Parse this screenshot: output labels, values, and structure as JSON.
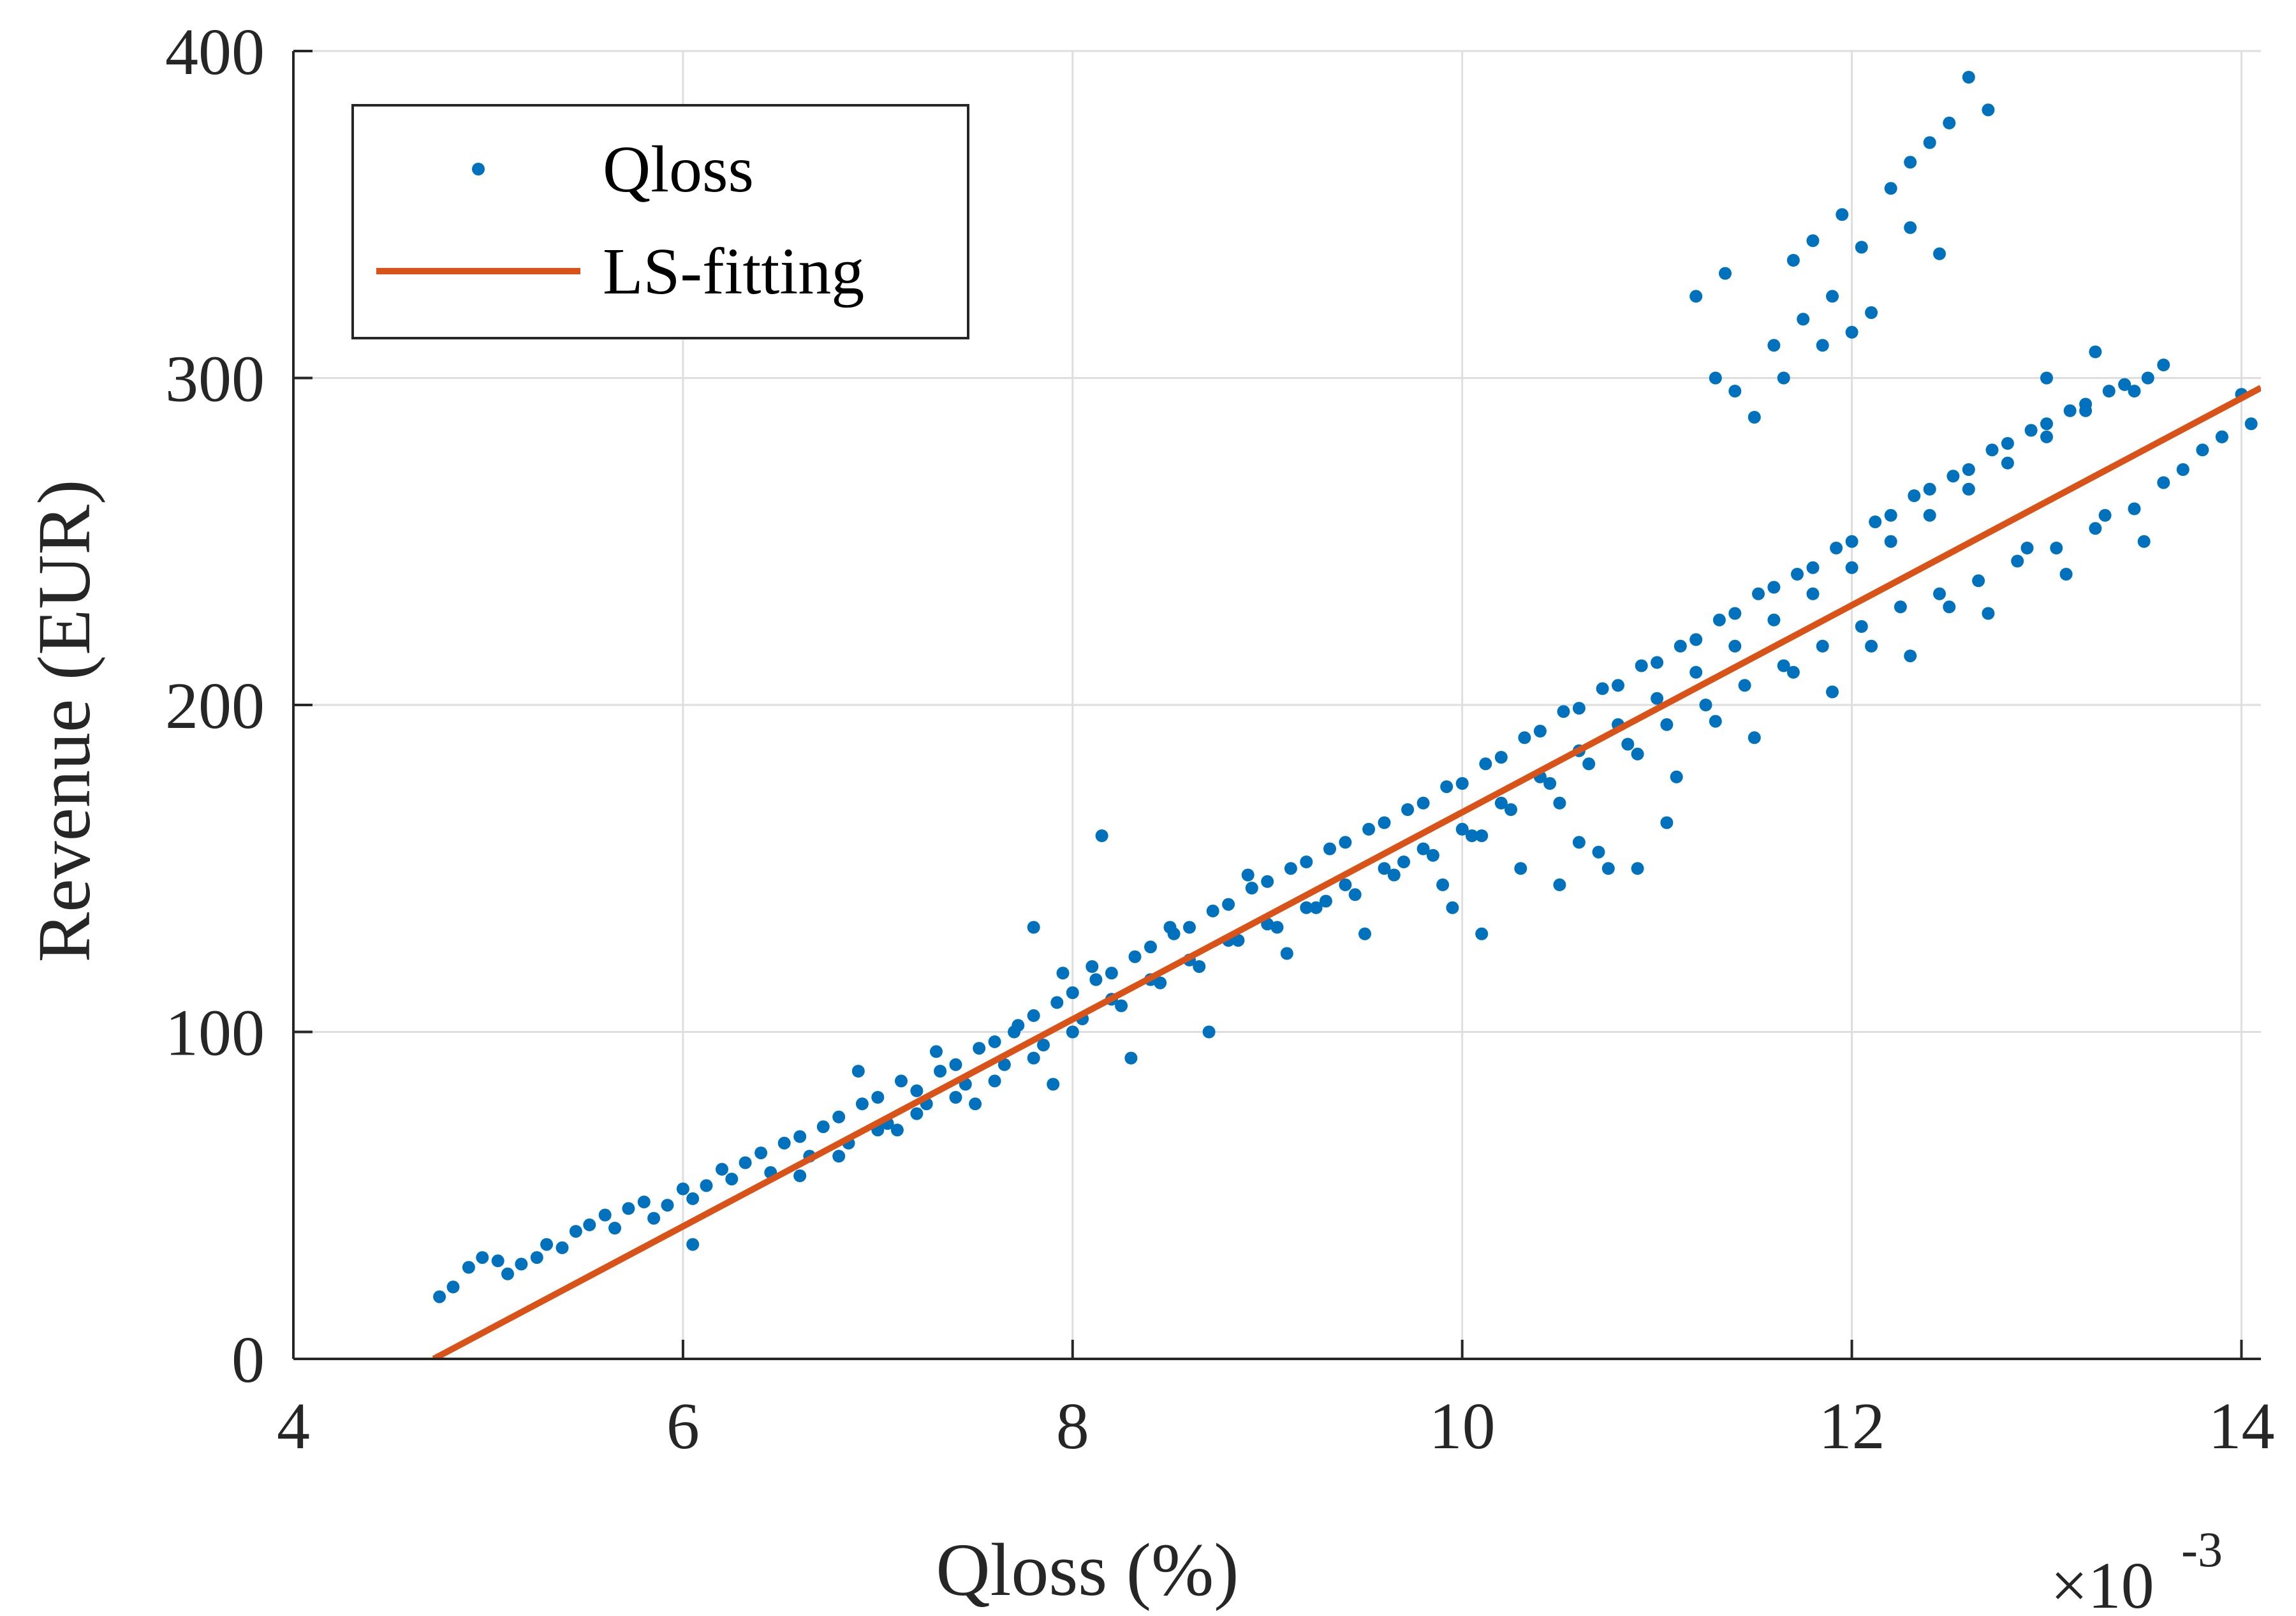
{
  "chart_data": {
    "type": "scatter",
    "title": "",
    "xlabel": "Qloss (%)",
    "ylabel": "Revenue (EUR)",
    "x_multiplier": "×10",
    "x_multiplier_exponent": "-3",
    "xlim": [
      4,
      14.1
    ],
    "ylim": [
      0,
      400
    ],
    "xticks": [
      4,
      6,
      8,
      10,
      12,
      14
    ],
    "xtick_labels": [
      "4",
      "6",
      "8",
      "10",
      "12",
      "14"
    ],
    "yticks": [
      0,
      100,
      200,
      300,
      400
    ],
    "ytick_labels": [
      "0",
      "100",
      "200",
      "300",
      "400"
    ],
    "grid": true,
    "legend": {
      "placement": "top-left",
      "entries": [
        "Qloss",
        "LS-fitting"
      ]
    },
    "series": [
      {
        "name": "Qloss",
        "kind": "scatter",
        "color": "#0072BD",
        "x": [
          4.75,
          4.82,
          4.9,
          4.97,
          5.05,
          5.1,
          5.17,
          5.25,
          5.3,
          5.38,
          5.45,
          5.52,
          5.6,
          5.65,
          5.72,
          5.8,
          5.85,
          5.92,
          6.0,
          6.05,
          6.12,
          6.2,
          6.25,
          6.32,
          6.4,
          6.45,
          6.52,
          6.6,
          6.65,
          6.72,
          6.8,
          6.85,
          6.92,
          7.0,
          7.05,
          7.12,
          7.2,
          7.25,
          7.32,
          7.4,
          7.45,
          7.52,
          7.6,
          7.65,
          7.72,
          7.8,
          7.85,
          7.92,
          8.0,
          8.05,
          8.12,
          8.2,
          8.25,
          8.32,
          8.4,
          8.45,
          8.52,
          8.6,
          8.65,
          8.72,
          8.8,
          8.85,
          8.92,
          9.0,
          9.05,
          9.12,
          9.2,
          9.25,
          9.32,
          9.4,
          9.45,
          9.52,
          9.6,
          9.65,
          9.72,
          9.8,
          9.85,
          9.92,
          10.0,
          10.05,
          10.12,
          10.2,
          10.25,
          10.32,
          10.4,
          10.45,
          10.52,
          10.6,
          10.65,
          10.72,
          10.8,
          10.85,
          10.92,
          11.0,
          11.05,
          11.12,
          11.2,
          11.25,
          11.32,
          11.4,
          11.45,
          11.52,
          11.6,
          11.65,
          11.72,
          11.8,
          11.85,
          11.92,
          12.0,
          12.05,
          12.12,
          12.2,
          12.25,
          12.32,
          12.4,
          12.45,
          12.52,
          12.6,
          12.65,
          12.72,
          12.8,
          12.85,
          12.92,
          13.0,
          13.05,
          13.12,
          13.2,
          13.25,
          13.32,
          13.4,
          13.45,
          13.52,
          13.6,
          13.7,
          13.8,
          13.9,
          14.0,
          6.9,
          7.1,
          7.3,
          7.5,
          7.7,
          7.9,
          8.1,
          8.3,
          8.5,
          8.7,
          8.9,
          9.1,
          9.3,
          9.5,
          9.7,
          9.9,
          10.1,
          10.3,
          10.5,
          10.7,
          10.9,
          11.1,
          11.3,
          11.5,
          11.7,
          11.9,
          12.1,
          12.3,
          12.5,
          12.7,
          12.9,
          13.1,
          13.3,
          13.5,
          6.6,
          6.8,
          7.0,
          7.2,
          7.4,
          7.6,
          7.8,
          8.0,
          8.2,
          8.4,
          8.6,
          8.8,
          9.0,
          9.2,
          9.4,
          9.6,
          9.8,
          10.0,
          10.2,
          10.4,
          10.6,
          10.8,
          11.0,
          11.2,
          11.4,
          11.6,
          11.8,
          12.0,
          12.2,
          12.4,
          12.6,
          12.8,
          13.0,
          13.2,
          13.4,
          13.6,
          11.2,
          11.35,
          11.5,
          11.65,
          11.75,
          11.85,
          11.9,
          12.0,
          12.1,
          12.2,
          12.3,
          12.4,
          12.5,
          12.6,
          12.7,
          12.45,
          12.3,
          12.05,
          11.95,
          11.8,
          11.7,
          11.6,
          11.4,
          11.3,
          8.15,
          7.8,
          7.95,
          6.05,
          10.1,
          9.95,
          10.9,
          11.05,
          10.5,
          10.6,
          10.75,
          13.0,
          13.25,
          13.45,
          13.9,
          14.05
        ],
        "y": [
          19,
          22,
          28,
          31,
          30,
          26,
          29,
          31,
          35,
          34,
          39,
          41,
          44,
          40,
          46,
          48,
          43,
          47,
          52,
          49,
          53,
          58,
          55,
          60,
          63,
          57,
          66,
          68,
          62,
          71,
          74,
          66,
          78,
          80,
          72,
          85,
          82,
          78,
          88,
          90,
          84,
          95,
          97,
          90,
          102,
          105,
          96,
          109,
          112,
          104,
          116,
          118,
          108,
          123,
          126,
          115,
          130,
          132,
          120,
          137,
          139,
          128,
          144,
          146,
          132,
          150,
          152,
          138,
          156,
          158,
          142,
          162,
          164,
          148,
          168,
          170,
          154,
          175,
          176,
          160,
          182,
          184,
          168,
          190,
          192,
          176,
          198,
          199,
          182,
          205,
          206,
          188,
          212,
          213,
          194,
          218,
          220,
          200,
          226,
          228,
          206,
          234,
          236,
          212,
          240,
          242,
          218,
          248,
          250,
          224,
          256,
          258,
          230,
          264,
          266,
          234,
          270,
          272,
          238,
          278,
          280,
          244,
          284,
          286,
          248,
          290,
          292,
          254,
          296,
          298,
          260,
          300,
          268,
          272,
          278,
          282,
          295,
          88,
          70,
          94,
          78,
          100,
          84,
          120,
          92,
          132,
          100,
          148,
          124,
          140,
          130,
          152,
          145,
          160,
          150,
          170,
          155,
          185,
          178,
          195,
          190,
          210,
          204,
          218,
          215,
          230,
          228,
          248,
          240,
          258,
          250,
          56,
          62,
          70,
          75,
          80,
          85,
          92,
          100,
          110,
          116,
          122,
          128,
          133,
          138,
          145,
          150,
          156,
          162,
          170,
          178,
          186,
          194,
          202,
          210,
          218,
          226,
          234,
          242,
          250,
          258,
          266,
          274,
          282,
          290,
          298,
          304,
          325,
          332,
          288,
          300,
          318,
          310,
          325,
          314,
          320,
          358,
          366,
          372,
          378,
          392,
          382,
          338,
          346,
          340,
          350,
          342,
          336,
          310,
          296,
          300,
          160,
          132,
          118,
          35,
          130,
          138,
          150,
          164,
          145,
          158,
          150,
          300,
          308,
          296,
          282,
          286
        ]
      },
      {
        "name": "LS-fitting",
        "kind": "line",
        "color": "#D95319",
        "x": [
          4.72,
          14.1
        ],
        "y": [
          0,
          297
        ]
      }
    ]
  }
}
